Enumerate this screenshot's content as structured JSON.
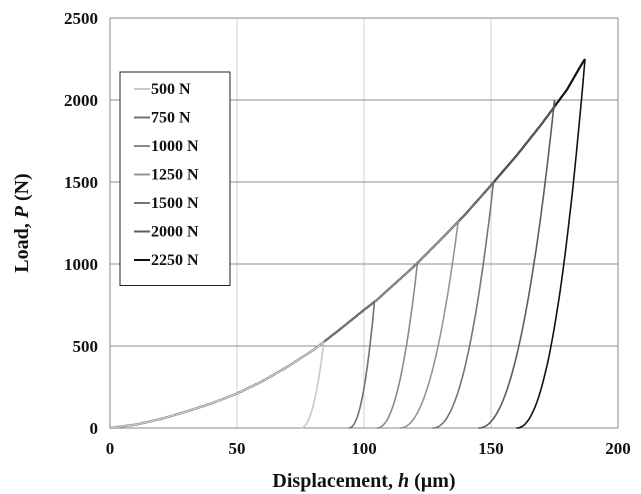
{
  "chart_data": {
    "type": "line",
    "xlabel": "Displacement, h (µm)",
    "xlabel_parts": [
      "Displacement, ",
      "h",
      " (µm)"
    ],
    "ylabel": "Load, P (N)",
    "ylabel_parts": [
      "Load, ",
      "P",
      " (N)"
    ],
    "xlim": [
      0,
      200
    ],
    "ylim": [
      0,
      2500
    ],
    "x_ticks": [
      0,
      50,
      100,
      150,
      200
    ],
    "y_ticks": [
      0,
      500,
      1000,
      1500,
      2000,
      2500
    ],
    "x_tick_labels": [
      "0",
      "50",
      "100",
      "150",
      "200"
    ],
    "y_tick_labels": [
      "0",
      "500",
      "1000",
      "1500",
      "2000",
      "2500"
    ],
    "grid": true,
    "legend_position": "left",
    "loading_curve": {
      "x": [
        0,
        10,
        20,
        30,
        40,
        50,
        60,
        70,
        80,
        85,
        90,
        100,
        105,
        110,
        120,
        130,
        140,
        150,
        160,
        170,
        175,
        180,
        185,
        187
      ],
      "y": [
        0,
        20,
        55,
        100,
        150,
        210,
        285,
        375,
        475,
        535,
        595,
        720,
        780,
        850,
        990,
        1145,
        1305,
        1480,
        1660,
        1855,
        1960,
        2065,
        2200,
        2250
      ]
    },
    "series": [
      {
        "name": "500 N",
        "color": "#c8c8c8",
        "peak": [
          84,
          500
        ],
        "unload_end_x": 75
      },
      {
        "name": "750 N",
        "color": "#707070",
        "peak": [
          104,
          750
        ],
        "unload_end_x": 94
      },
      {
        "name": "1000 N",
        "color": "#8a8a8a",
        "peak": [
          121,
          1000
        ],
        "unload_end_x": 105
      },
      {
        "name": "1250 N",
        "color": "#959595",
        "peak": [
          137,
          1250
        ],
        "unload_end_x": 114
      },
      {
        "name": "1500 N",
        "color": "#757575",
        "peak": [
          151,
          1500
        ],
        "unload_end_x": 127
      },
      {
        "name": "2000 N",
        "color": "#5c5c5c",
        "peak": [
          175,
          2000
        ],
        "unload_end_x": 145
      },
      {
        "name": "2250 N",
        "color": "#111111",
        "peak": [
          187,
          2250
        ],
        "unload_end_x": 160
      }
    ]
  }
}
